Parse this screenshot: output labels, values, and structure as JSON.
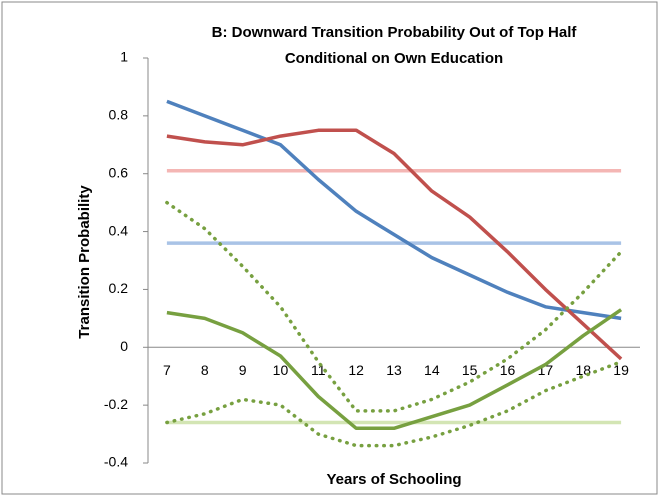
{
  "chart_data": {
    "type": "line",
    "title": [
      "B: Downward Transition Probability Out of Top Half",
      "Conditional on Own Education"
    ],
    "x_label": "Years of Schooling",
    "y_label": "Transition Probability",
    "categories": [
      "7",
      "8",
      "9",
      "10",
      "11",
      "12",
      "13",
      "14",
      "15",
      "16",
      "17",
      "18",
      "19"
    ],
    "ylim": [
      -0.4,
      1
    ],
    "yticks": [
      -0.4,
      -0.2,
      0,
      0.2,
      0.4,
      0.6,
      0.8,
      1
    ],
    "grid": false,
    "series": [
      {
        "color": "#f4b6b4",
        "values": [
          0.61,
          0.61,
          0.61,
          0.61,
          0.61,
          0.61,
          0.61,
          0.61,
          0.61,
          0.61,
          0.61,
          0.61,
          0.61
        ]
      },
      {
        "color": "#a9c3e6",
        "values": [
          0.36,
          0.36,
          0.36,
          0.36,
          0.36,
          0.36,
          0.36,
          0.36,
          0.36,
          0.36,
          0.36,
          0.36,
          0.36
        ]
      },
      {
        "color": "#d3e5b4",
        "values": [
          -0.26,
          -0.26,
          -0.26,
          -0.26,
          -0.26,
          -0.26,
          -0.26,
          -0.26,
          -0.26,
          -0.26,
          -0.26,
          -0.26,
          -0.26
        ]
      },
      {
        "color": "#4f81bd",
        "values": [
          0.85,
          0.8,
          0.75,
          0.7,
          0.58,
          0.47,
          0.39,
          0.31,
          0.25,
          0.19,
          0.14,
          0.12,
          0.1
        ]
      },
      {
        "color": "#c0504d",
        "values": [
          0.73,
          0.71,
          0.7,
          0.73,
          0.75,
          0.75,
          0.67,
          0.54,
          0.45,
          0.33,
          0.2,
          0.08,
          -0.04
        ]
      },
      {
        "color": "#77a040",
        "values": [
          0.12,
          0.1,
          0.05,
          -0.03,
          -0.17,
          -0.28,
          -0.28,
          -0.24,
          -0.2,
          -0.13,
          -0.06,
          0.04,
          0.13
        ]
      },
      {
        "color": "#77a040",
        "dash": "dotted",
        "values": [
          0.5,
          0.41,
          0.28,
          0.14,
          -0.05,
          -0.22,
          -0.22,
          -0.18,
          -0.12,
          -0.04,
          0.06,
          0.19,
          0.33
        ]
      },
      {
        "color": "#77a040",
        "dash": "dotted",
        "values": [
          -0.26,
          -0.23,
          -0.18,
          -0.2,
          -0.3,
          -0.34,
          -0.34,
          -0.31,
          -0.27,
          -0.22,
          -0.15,
          -0.1,
          -0.05
        ]
      }
    ]
  }
}
